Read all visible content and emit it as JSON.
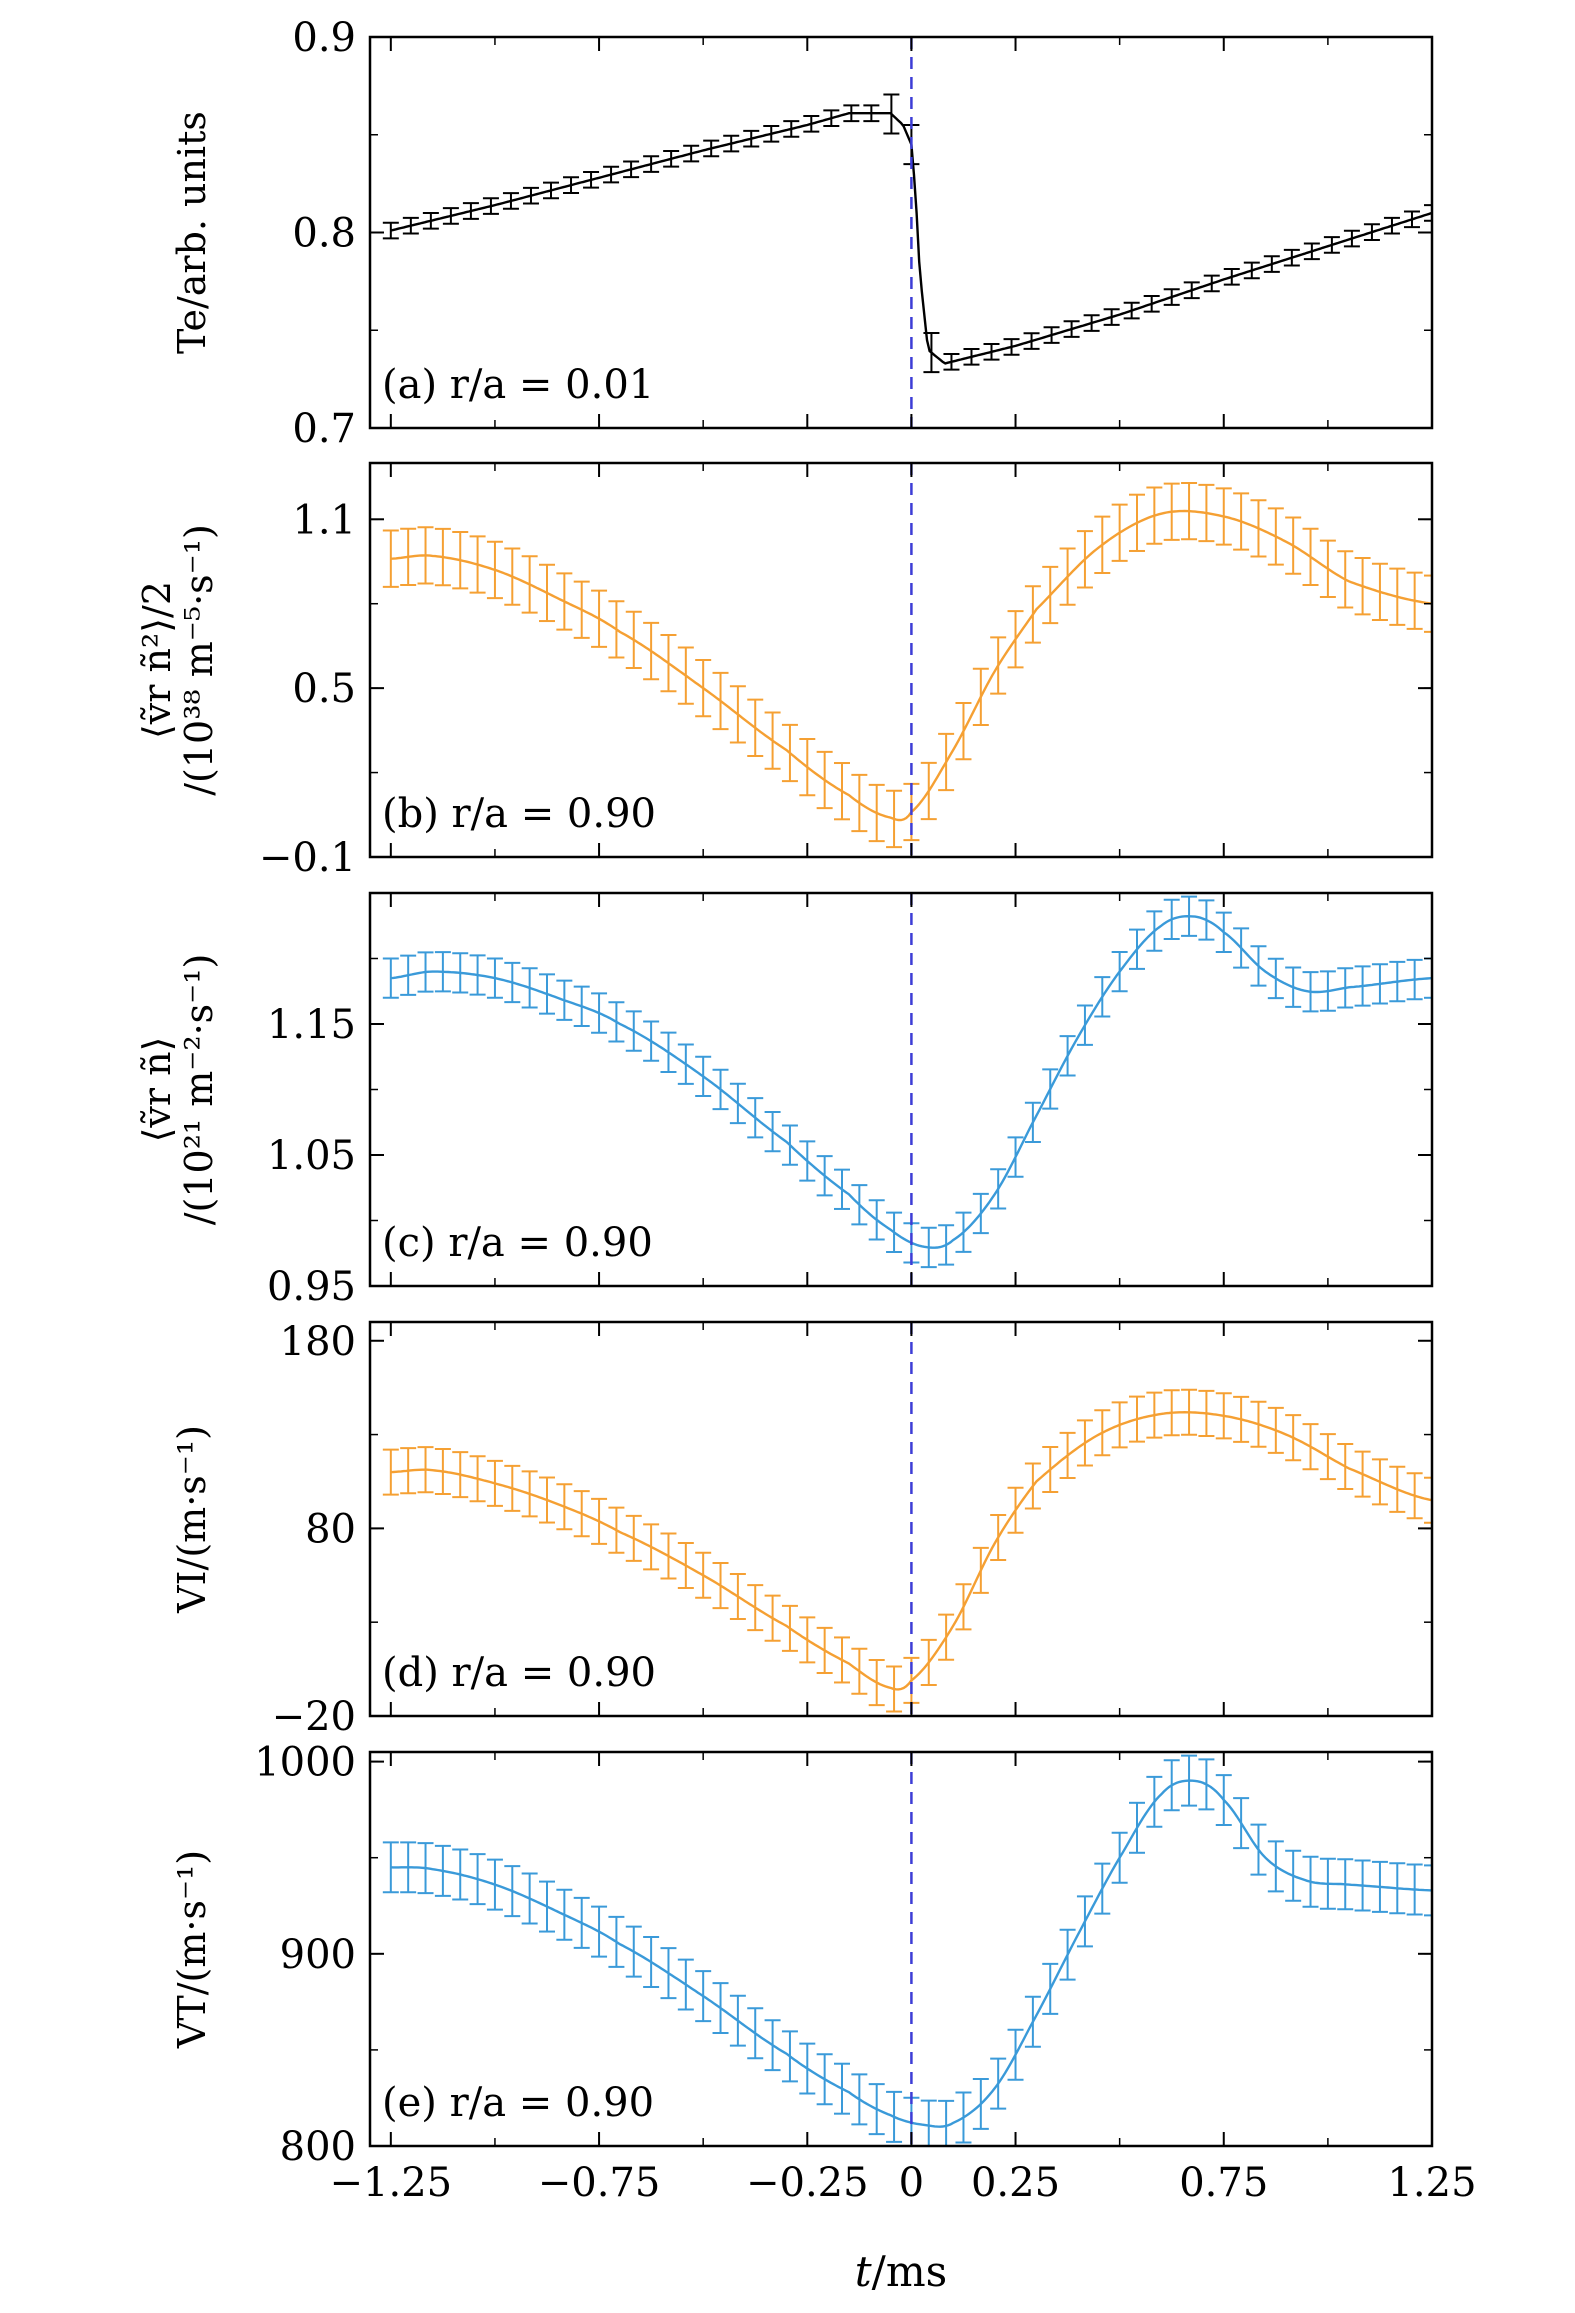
{
  "chart_data": [
    {
      "type": "line",
      "panel": "(a)",
      "annotation": "r/a = 0.01",
      "ylabel": "Te/arb. units",
      "ylim": [
        0.7,
        0.9
      ],
      "yticks": [
        0.7,
        0.8,
        0.9
      ],
      "ytick_labels": [
        "0.7",
        "0.8",
        "0.9"
      ],
      "color": "#000000",
      "err": 0.004,
      "series": [
        {
          "name": "Te",
          "x": [
            -1.25,
            -1.0,
            -0.75,
            -0.5,
            -0.25,
            -0.15,
            -0.05,
            -0.02,
            0.0,
            0.01,
            0.02,
            0.04,
            0.08,
            0.25,
            0.5,
            0.75,
            1.0,
            1.25
          ],
          "y": [
            0.801,
            0.814,
            0.828,
            0.842,
            0.855,
            0.861,
            0.861,
            0.855,
            0.845,
            0.82,
            0.78,
            0.74,
            0.733,
            0.742,
            0.758,
            0.776,
            0.793,
            0.81
          ]
        }
      ]
    },
    {
      "type": "line",
      "panel": "(b)",
      "annotation": "r/a = 0.90",
      "ylabel": "⟨ṽr ñ²⟩/2",
      "ylabel2": "/(10³⁸ m⁻⁵·s⁻¹)",
      "ylim": [
        -0.1,
        1.3
      ],
      "yticks": [
        -0.1,
        0.5,
        1.1
      ],
      "ytick_labels": [
        "−0.1",
        "0.5",
        "1.1"
      ],
      "color": "#f5a033",
      "err": 0.1,
      "series": [
        {
          "name": "vr n^2 / 2",
          "x": [
            -1.25,
            -1.15,
            -1.0,
            -0.85,
            -0.7,
            -0.5,
            -0.3,
            -0.15,
            -0.05,
            0.0,
            0.1,
            0.2,
            0.3,
            0.45,
            0.6,
            0.75,
            0.9,
            1.05,
            1.25
          ],
          "y": [
            0.96,
            0.97,
            0.92,
            0.82,
            0.7,
            0.5,
            0.28,
            0.12,
            0.04,
            0.06,
            0.28,
            0.56,
            0.78,
            1.0,
            1.12,
            1.11,
            1.02,
            0.88,
            0.8
          ]
        }
      ]
    },
    {
      "type": "line",
      "panel": "(c)",
      "annotation": "r/a = 0.90",
      "ylabel": "⟨ṽr ñ⟩",
      "ylabel2": "/(10²¹ m⁻²·s⁻¹)",
      "ylim": [
        0.95,
        1.25
      ],
      "yticks": [
        0.95,
        1.05,
        1.15
      ],
      "ytick_labels": [
        "0.95",
        "1.05",
        "1.15"
      ],
      "color": "#3a9ad9",
      "err": 0.015,
      "series": [
        {
          "name": "vr n",
          "x": [
            -1.25,
            -1.15,
            -1.0,
            -0.85,
            -0.7,
            -0.5,
            -0.3,
            -0.15,
            -0.05,
            0.03,
            0.1,
            0.2,
            0.3,
            0.4,
            0.5,
            0.6,
            0.68,
            0.75,
            0.85,
            0.95,
            1.05,
            1.25
          ],
          "y": [
            1.185,
            1.19,
            1.185,
            1.17,
            1.15,
            1.11,
            1.06,
            1.02,
            0.993,
            0.98,
            0.985,
            1.02,
            1.08,
            1.14,
            1.19,
            1.225,
            1.232,
            1.22,
            1.19,
            1.175,
            1.178,
            1.185
          ]
        }
      ]
    },
    {
      "type": "line",
      "panel": "(d)",
      "annotation": "r/a = 0.90",
      "ylabel": "VI/(m·s⁻¹)",
      "ylim": [
        -20,
        190
      ],
      "yticks": [
        -20,
        80,
        180
      ],
      "ytick_labels": [
        "−20",
        "80",
        "180"
      ],
      "color": "#f5a033",
      "err": 12,
      "series": [
        {
          "name": "VI",
          "x": [
            -1.25,
            -1.15,
            -1.0,
            -0.85,
            -0.7,
            -0.5,
            -0.3,
            -0.15,
            -0.05,
            0.0,
            0.1,
            0.2,
            0.3,
            0.45,
            0.6,
            0.75,
            0.9,
            1.05,
            1.25
          ],
          "y": [
            110,
            111,
            104,
            93,
            78,
            55,
            28,
            8,
            -5,
            -1,
            28,
            72,
            105,
            130,
            141,
            140,
            130,
            112,
            95
          ]
        }
      ]
    },
    {
      "type": "line",
      "panel": "(e)",
      "annotation": "r/a = 0.90",
      "ylabel": "VT/(m·s⁻¹)",
      "xlabel": "t/ms",
      "xlim": [
        -1.3,
        1.25
      ],
      "xticks": [
        -1.25,
        -0.75,
        -0.25,
        0,
        0.25,
        0.75,
        1.25
      ],
      "xtick_labels": [
        "−1.25",
        "−0.75",
        "−0.25",
        "0",
        "0.25",
        "0.75",
        "1.25"
      ],
      "ylim": [
        800,
        1005
      ],
      "yticks": [
        800,
        900,
        1000
      ],
      "ytick_labels": [
        "800",
        "900",
        "1000"
      ],
      "color": "#3a9ad9",
      "err": 13,
      "series": [
        {
          "name": "VT",
          "x": [
            -1.25,
            -1.15,
            -1.0,
            -0.85,
            -0.7,
            -0.5,
            -0.3,
            -0.15,
            -0.05,
            0.03,
            0.1,
            0.2,
            0.3,
            0.4,
            0.5,
            0.6,
            0.68,
            0.75,
            0.85,
            0.95,
            1.05,
            1.25
          ],
          "y": [
            945,
            944,
            936,
            922,
            905,
            878,
            848,
            828,
            816,
            811,
            812,
            830,
            868,
            910,
            950,
            983,
            990,
            980,
            950,
            938,
            936,
            933
          ]
        }
      ]
    }
  ],
  "x_axis": {
    "label_italic": "t",
    "label_rest": "/ms"
  },
  "dashed_line": {
    "x": 0,
    "color": "#3d3dd6"
  }
}
